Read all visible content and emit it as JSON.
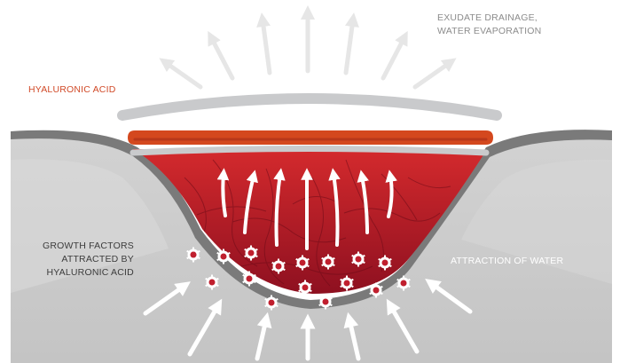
{
  "labels": {
    "exudate_line1": "EXUDATE DRAINAGE,",
    "exudate_line2": "WATER EVAPORATION",
    "hyaluronic_acid": "HYALURONIC ACID",
    "growth_factors_line1": "GROWTH FACTORS",
    "growth_factors_line2": "ATTRACTED BY",
    "growth_factors_line3": "HYALURONIC ACID",
    "attraction_of_water": "ATTRACTION OF WATER"
  },
  "colors": {
    "background": "#ffffff",
    "outer_arrows": "#e6e6e6",
    "skin_dark": "#7a7a7a",
    "tissue": "#cfcfcf",
    "tissue_light": "#dadada",
    "wound_top": "#d42a2d",
    "wound_bottom": "#8e1020",
    "dressing_bar": "#c9cacc",
    "hyaluronic_layer": "#d4481e",
    "hyaluronic_label": "#d14a28",
    "gray_label": "#8c8c8c",
    "dark_label": "#3c3c3c",
    "inner_arrows": "#ffffff",
    "growth_factor": "#c01f2e"
  }
}
